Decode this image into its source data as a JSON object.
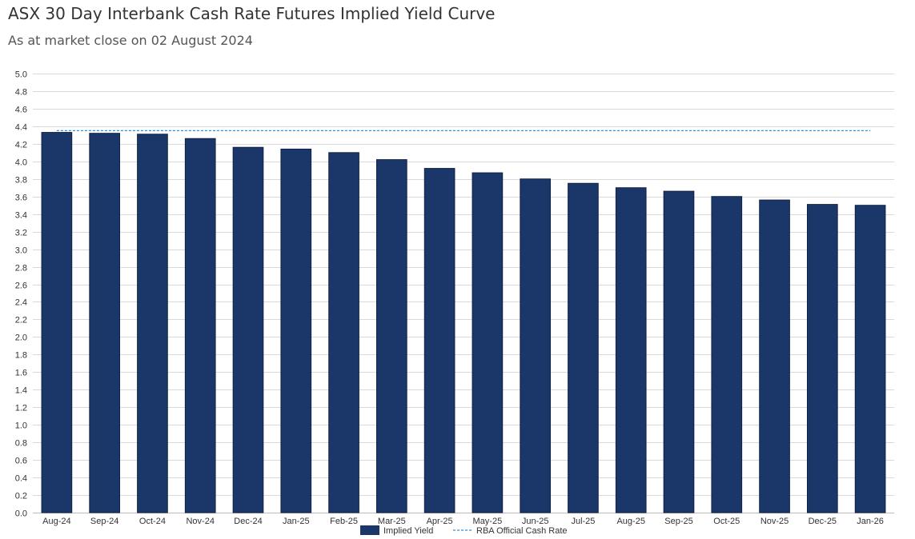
{
  "chart_data": {
    "type": "bar",
    "title": "ASX 30 Day Interbank Cash Rate Futures Implied Yield Curve",
    "subtitle": "As at market close on 02 August 2024",
    "xlabel": "",
    "ylabel": "",
    "ylim": [
      0,
      5.0
    ],
    "ytick_step": 0.2,
    "grid": true,
    "legend_position": "bottom-center",
    "categories": [
      "Aug-24",
      "Sep-24",
      "Oct-24",
      "Nov-24",
      "Dec-24",
      "Jan-25",
      "Feb-25",
      "Mar-25",
      "Apr-25",
      "May-25",
      "Jun-25",
      "Jul-25",
      "Aug-25",
      "Sep-25",
      "Oct-25",
      "Nov-25",
      "Dec-25",
      "Jan-26"
    ],
    "series": [
      {
        "name": "Implied Yield",
        "type": "bar",
        "color": "#1b3769",
        "values": [
          4.33,
          4.32,
          4.31,
          4.26,
          4.16,
          4.14,
          4.1,
          4.02,
          3.92,
          3.87,
          3.8,
          3.75,
          3.7,
          3.66,
          3.6,
          3.56,
          3.51,
          3.5
        ]
      },
      {
        "name": "RBA Official Cash Rate",
        "type": "line",
        "style": "dashed",
        "color": "#2e8fd6",
        "values": [
          4.35,
          4.35,
          4.35,
          4.35,
          4.35,
          4.35,
          4.35,
          4.35,
          4.35,
          4.35,
          4.35,
          4.35,
          4.35,
          4.35,
          4.35,
          4.35,
          4.35,
          4.35
        ]
      }
    ]
  }
}
